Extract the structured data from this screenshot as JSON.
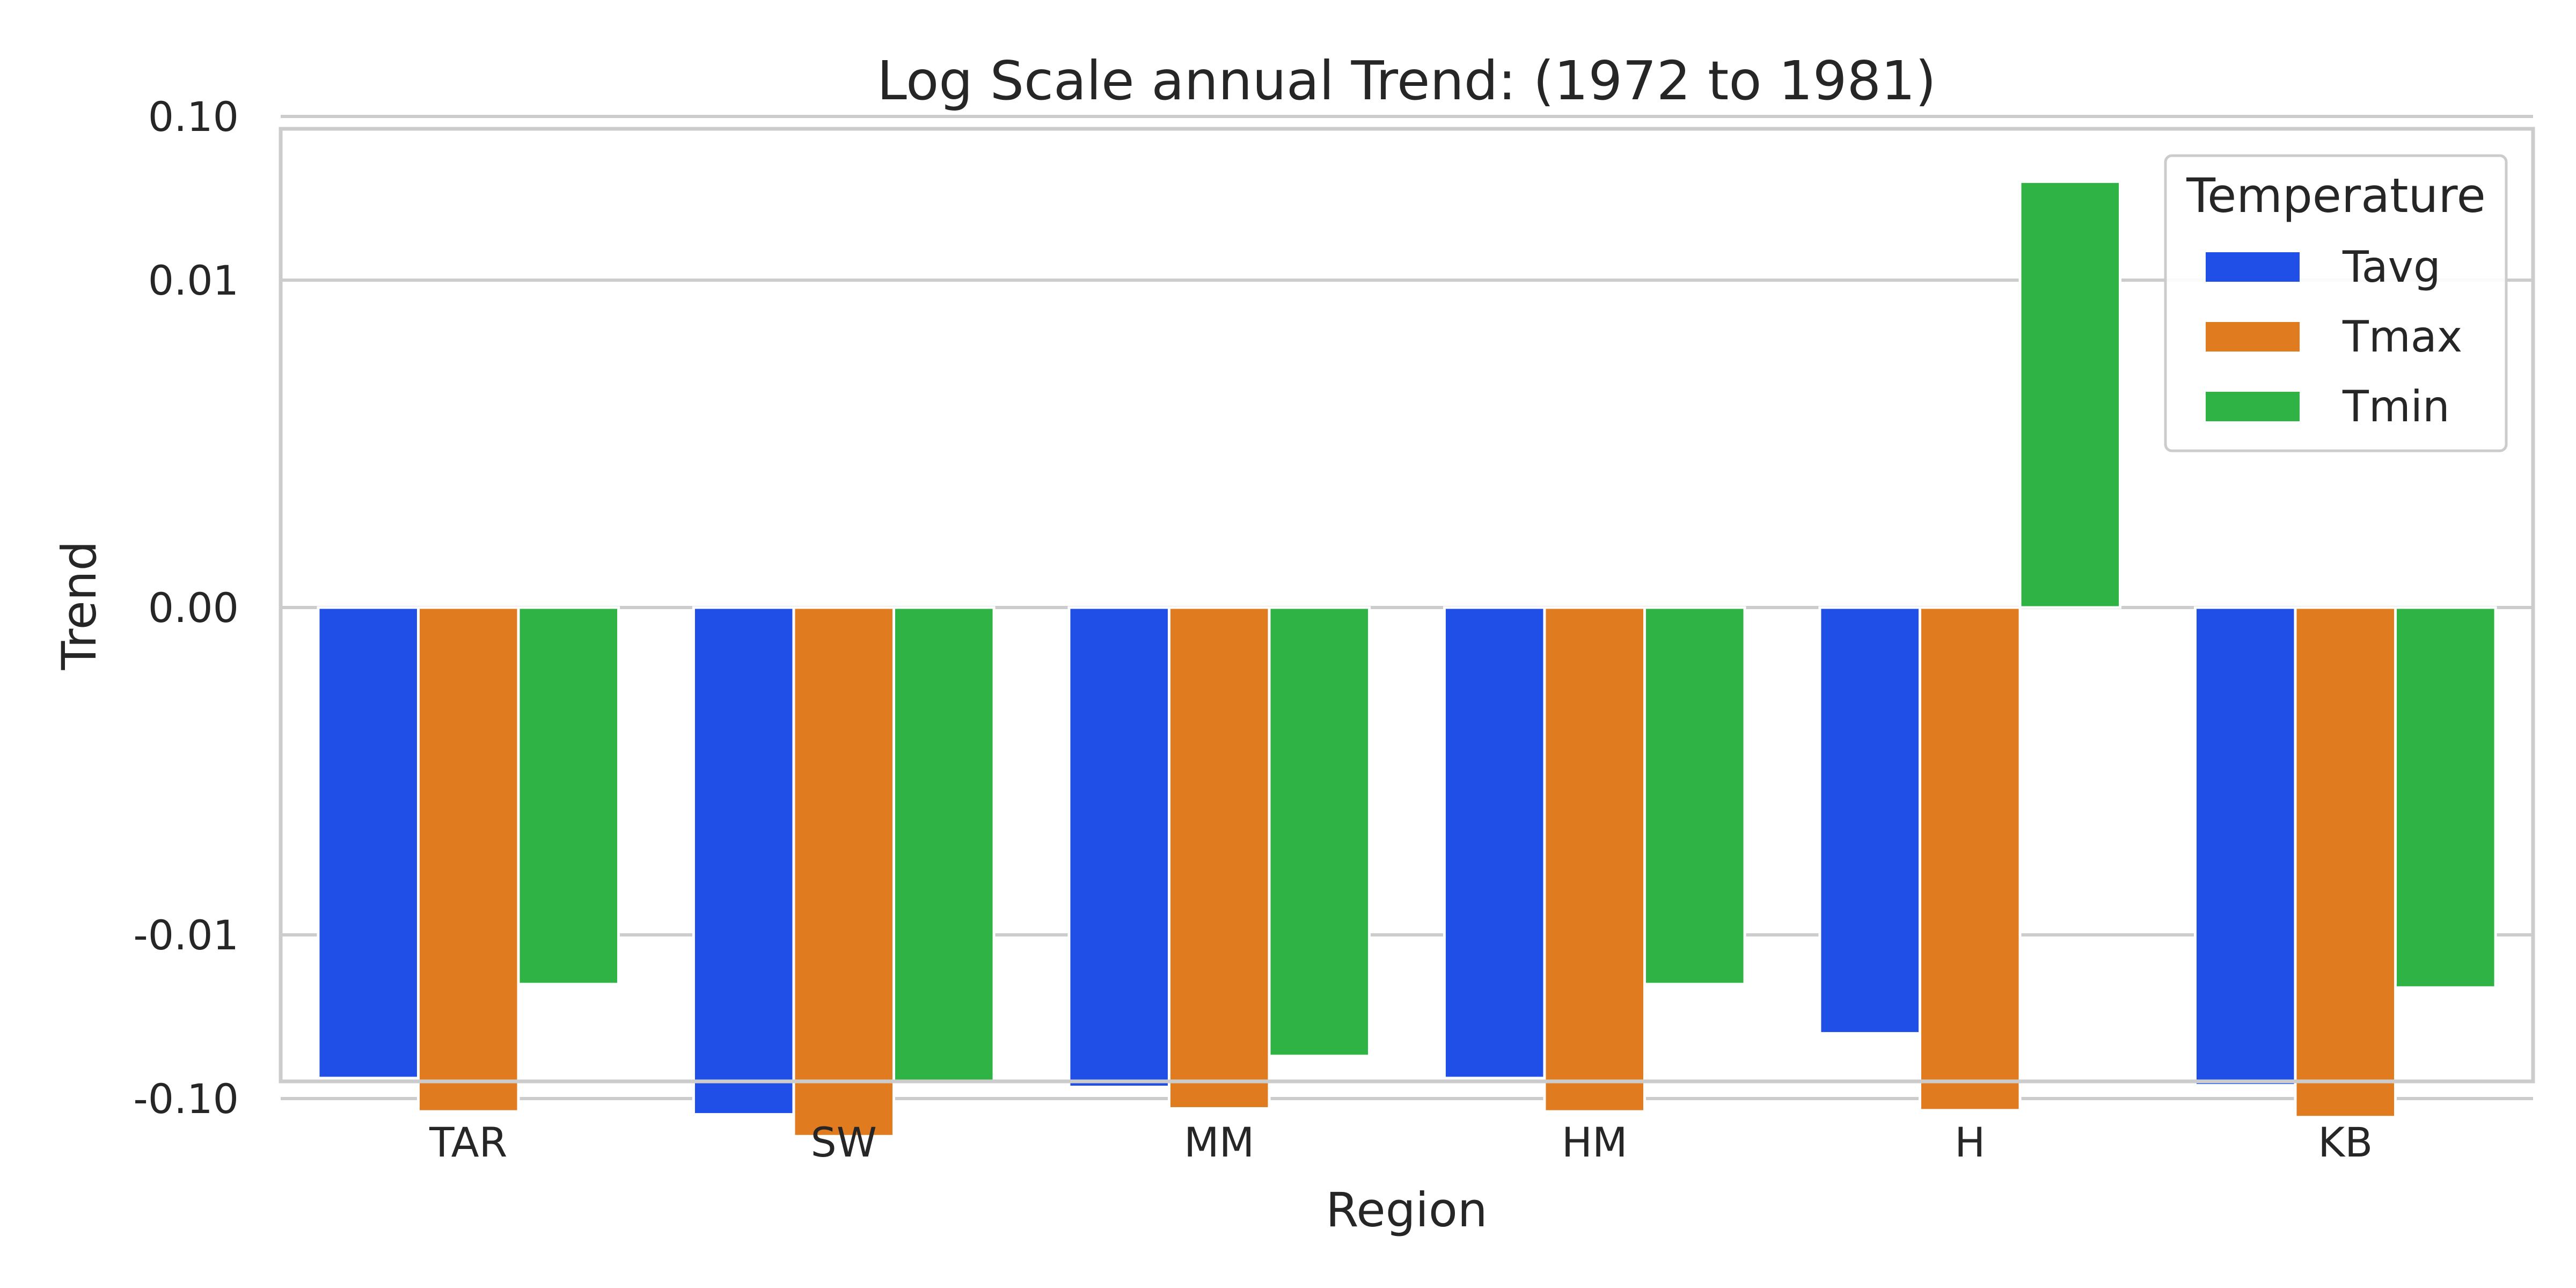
{
  "chart_data": {
    "type": "bar",
    "title": "Log Scale annual Trend: (1972 to 1981)",
    "xlabel": "Region",
    "ylabel": "Trend",
    "y_scale": "symlog",
    "y_linthresh": 0.001,
    "ylim": [
      -1.0,
      1.0
    ],
    "yticks": [
      -0.1,
      -0.01,
      0.0,
      0.01,
      0.1
    ],
    "ytick_labels": [
      "-0.10",
      "-0.01",
      "0.00",
      "0.01",
      "0.10"
    ],
    "grid": "horizontal",
    "legend": {
      "title": "Temperature",
      "placement": "top-right"
    },
    "categories": [
      "TAR",
      "SW",
      "MM",
      "HM",
      "H",
      "KB"
    ],
    "series": [
      {
        "name": "Tavg",
        "color": "#1f4fe6",
        "values": [
          -0.075,
          -0.125,
          -0.085,
          -0.075,
          -0.04,
          -0.083
        ]
      },
      {
        "name": "Tmax",
        "color": "#e07b20",
        "values": [
          -0.12,
          -0.17,
          -0.115,
          -0.12,
          -0.118,
          -0.13
        ]
      },
      {
        "name": "Tmin",
        "color": "#2eb344",
        "values": [
          -0.02,
          -0.08,
          -0.055,
          -0.02,
          0.04,
          -0.021
        ]
      }
    ]
  }
}
